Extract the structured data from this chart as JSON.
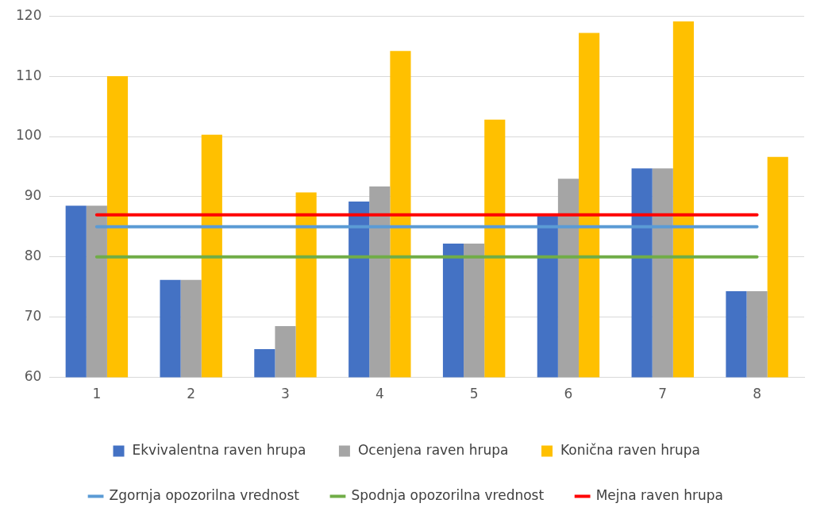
{
  "chart_data": {
    "type": "bar",
    "categories": [
      "1",
      "2",
      "3",
      "4",
      "5",
      "6",
      "7",
      "8"
    ],
    "series": [
      {
        "name": "Ekvivalentna raven hrupa",
        "color": "#4472c4",
        "values": [
          88.5,
          76.2,
          64.7,
          89.2,
          82.2,
          86.8,
          94.7,
          74.3
        ]
      },
      {
        "name": "Ocenjena raven hrupa",
        "color": "#a5a5a5",
        "values": [
          88.5,
          76.2,
          68.5,
          91.7,
          82.2,
          93.0,
          94.7,
          74.3
        ]
      },
      {
        "name": "Konična raven hrupa",
        "color": "#ffc000",
        "values": [
          110.0,
          100.3,
          90.7,
          114.2,
          102.8,
          117.2,
          119.1,
          96.6
        ]
      },
      {
        "name": "Zgornja opozorilna vrednost",
        "type": "line",
        "color": "#5b9bd5",
        "values": [
          85,
          85,
          85,
          85,
          85,
          85,
          85,
          85
        ]
      },
      {
        "name": "Spodnja opozorilna vrednost",
        "type": "line",
        "color": "#70ad47",
        "values": [
          80,
          80,
          80,
          80,
          80,
          80,
          80,
          80
        ]
      },
      {
        "name": "Mejna raven hrupa",
        "type": "line",
        "color": "#ff0000",
        "values": [
          87,
          87,
          87,
          87,
          87,
          87,
          87,
          87
        ]
      }
    ],
    "ylim": [
      60,
      120
    ],
    "yticks": [
      60,
      70,
      80,
      90,
      100,
      110,
      120
    ],
    "grid": "y",
    "legend": "bottom",
    "marker": "none",
    "line_style": "solid"
  }
}
